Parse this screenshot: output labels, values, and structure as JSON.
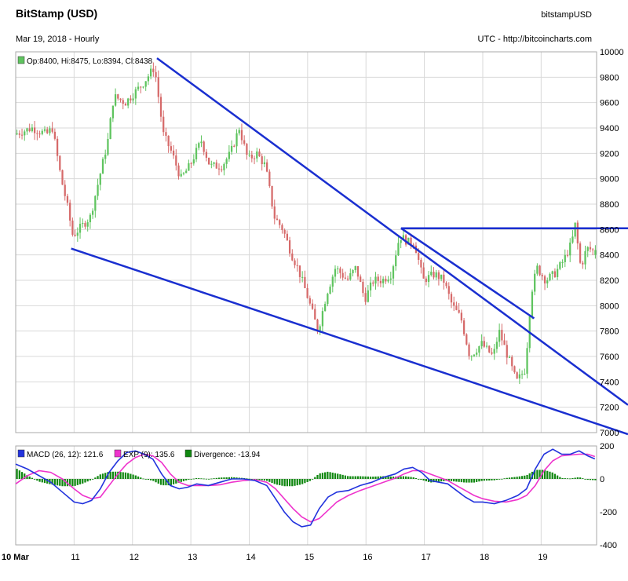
{
  "header": {
    "title": "BitStamp (USD)",
    "subtitle": "Mar 19, 2018 - Hourly",
    "symbol": "bitstampUSD",
    "source": "UTC - http://bitcoincharts.com",
    "ohlc": "Op:8400, Hi:8475, Lo:8394, Cl:8438"
  },
  "colors": {
    "up": "#5fc45f",
    "down": "#d66a6a",
    "trend": "#1a2fd0",
    "macd": "#2233dd",
    "signal": "#ee33cc",
    "divergence": "#118811",
    "grid": "#d9d9d9"
  },
  "chart_data": [
    {
      "type": "candlestick",
      "title": "BitStamp (USD)",
      "x_tick_labels": [
        "10 Mar",
        "11",
        "12",
        "13",
        "14",
        "15",
        "16",
        "17",
        "18",
        "19"
      ],
      "xlim": [
        10.0,
        19.95
      ],
      "ylim": [
        7000,
        10000
      ],
      "y_ticks": [
        7000,
        7200,
        7400,
        7600,
        7800,
        8000,
        8200,
        8400,
        8600,
        8800,
        9000,
        9200,
        9400,
        9600,
        9800,
        10000
      ],
      "grid": true,
      "anchor_closes": [
        [
          10.0,
          9350
        ],
        [
          10.3,
          9400
        ],
        [
          10.55,
          9350
        ],
        [
          10.65,
          9400
        ],
        [
          10.8,
          9000
        ],
        [
          10.9,
          8800
        ],
        [
          11.0,
          8550
        ],
        [
          11.3,
          8700
        ],
        [
          11.45,
          9000
        ],
        [
          11.6,
          9300
        ],
        [
          11.7,
          9650
        ],
        [
          11.9,
          9600
        ],
        [
          12.2,
          9750
        ],
        [
          12.4,
          9880
        ],
        [
          12.55,
          9350
        ],
        [
          12.7,
          9200
        ],
        [
          12.85,
          9000
        ],
        [
          13.0,
          9100
        ],
        [
          13.2,
          9300
        ],
        [
          13.35,
          9100
        ],
        [
          13.55,
          9100
        ],
        [
          13.7,
          9200
        ],
        [
          13.85,
          9400
        ],
        [
          14.0,
          9150
        ],
        [
          14.15,
          9200
        ],
        [
          14.3,
          9100
        ],
        [
          14.45,
          8700
        ],
        [
          14.6,
          8600
        ],
        [
          14.75,
          8400
        ],
        [
          14.85,
          8300
        ],
        [
          15.0,
          8100
        ],
        [
          15.2,
          7800
        ],
        [
          15.35,
          8100
        ],
        [
          15.5,
          8300
        ],
        [
          15.7,
          8200
        ],
        [
          15.85,
          8300
        ],
        [
          16.0,
          8050
        ],
        [
          16.15,
          8200
        ],
        [
          16.3,
          8200
        ],
        [
          16.45,
          8250
        ],
        [
          16.6,
          8550
        ],
        [
          16.75,
          8500
        ],
        [
          16.85,
          8500
        ],
        [
          17.0,
          8200
        ],
        [
          17.2,
          8250
        ],
        [
          17.35,
          8200
        ],
        [
          17.5,
          8000
        ],
        [
          17.65,
          7900
        ],
        [
          17.8,
          7600
        ],
        [
          18.0,
          7700
        ],
        [
          18.2,
          7600
        ],
        [
          18.3,
          7800
        ],
        [
          18.45,
          7600
        ],
        [
          18.6,
          7400
        ],
        [
          18.75,
          7500
        ],
        [
          18.85,
          8100
        ],
        [
          18.95,
          8300
        ],
        [
          19.1,
          8200
        ],
        [
          19.25,
          8250
        ],
        [
          19.4,
          8350
        ],
        [
          19.55,
          8500
        ],
        [
          19.6,
          8650
        ],
        [
          19.7,
          8300
        ],
        [
          19.8,
          8450
        ],
        [
          19.92,
          8438
        ]
      ],
      "last_candle": {
        "open": 8400,
        "high": 8475,
        "low": 8394,
        "close": 8438
      },
      "trendlines": [
        {
          "from": [
            12.42,
            9950
          ],
          "to": [
            19.95,
            7400
          ]
        },
        {
          "from": [
            10.95,
            8450
          ],
          "to": [
            19.95,
            7070
          ]
        },
        {
          "from": [
            16.6,
            8610
          ],
          "to": [
            19.95,
            8610
          ]
        },
        {
          "from": [
            18.88,
            7900
          ],
          "to": [
            16.6,
            8610
          ]
        }
      ]
    },
    {
      "type": "line",
      "title": "MACD",
      "legend": [
        {
          "label": "MACD (26, 12): 121.6",
          "key": "macd"
        },
        {
          "label": "EXP (9): 135.6",
          "key": "signal"
        },
        {
          "label": "Divergence: -13.94",
          "key": "divergence"
        }
      ],
      "xlim": [
        10.0,
        19.95
      ],
      "ylim": [
        -400,
        200
      ],
      "y_ticks": [
        -400,
        -200,
        0,
        200
      ],
      "series": [
        {
          "name": "MACD (26, 12)",
          "key": "macd",
          "x": [
            10.0,
            10.2,
            10.4,
            10.6,
            10.8,
            11.0,
            11.15,
            11.3,
            11.45,
            11.6,
            11.75,
            11.9,
            12.05,
            12.2,
            12.35,
            12.5,
            12.65,
            12.8,
            12.95,
            13.1,
            13.3,
            13.5,
            13.7,
            13.9,
            14.1,
            14.3,
            14.45,
            14.6,
            14.75,
            14.9,
            15.05,
            15.2,
            15.35,
            15.5,
            15.7,
            15.9,
            16.1,
            16.3,
            16.5,
            16.65,
            16.8,
            16.95,
            17.1,
            17.25,
            17.4,
            17.55,
            17.7,
            17.85,
            18.0,
            18.2,
            18.4,
            18.6,
            18.75,
            18.9,
            19.05,
            19.2,
            19.35,
            19.5,
            19.65,
            19.8,
            19.92
          ],
          "y": [
            90,
            60,
            20,
            -20,
            -80,
            -140,
            -150,
            -130,
            -60,
            40,
            110,
            160,
            170,
            150,
            120,
            30,
            -40,
            -60,
            -50,
            -30,
            -40,
            -20,
            0,
            0,
            -10,
            -40,
            -120,
            -200,
            -260,
            -290,
            -280,
            -180,
            -110,
            -80,
            -70,
            -40,
            -20,
            10,
            30,
            60,
            70,
            40,
            -10,
            -20,
            -30,
            -70,
            -110,
            -140,
            -140,
            -150,
            -130,
            -100,
            -60,
            60,
            150,
            180,
            150,
            150,
            170,
            140,
            121.6
          ]
        },
        {
          "name": "EXP (9)",
          "key": "signal",
          "x": [
            10.0,
            10.2,
            10.4,
            10.6,
            10.8,
            11.0,
            11.15,
            11.3,
            11.45,
            11.6,
            11.75,
            11.9,
            12.05,
            12.2,
            12.35,
            12.5,
            12.65,
            12.8,
            12.95,
            13.1,
            13.3,
            13.5,
            13.7,
            13.9,
            14.1,
            14.3,
            14.45,
            14.6,
            14.75,
            14.9,
            15.05,
            15.2,
            15.35,
            15.5,
            15.7,
            15.9,
            16.1,
            16.3,
            16.5,
            16.65,
            16.8,
            16.95,
            17.1,
            17.25,
            17.4,
            17.55,
            17.7,
            17.85,
            18.0,
            18.2,
            18.4,
            18.6,
            18.75,
            18.9,
            19.05,
            19.2,
            19.35,
            19.5,
            19.65,
            19.8,
            19.92
          ],
          "y": [
            -30,
            20,
            50,
            40,
            0,
            -60,
            -100,
            -120,
            -110,
            -40,
            30,
            90,
            130,
            150,
            140,
            100,
            30,
            -20,
            -40,
            -40,
            -40,
            -35,
            -20,
            -10,
            -5,
            -20,
            -60,
            -120,
            -180,
            -230,
            -260,
            -240,
            -190,
            -140,
            -100,
            -70,
            -45,
            -20,
            5,
            30,
            50,
            50,
            30,
            10,
            -10,
            -40,
            -70,
            -100,
            -120,
            -135,
            -140,
            -125,
            -100,
            -40,
            50,
            110,
            140,
            145,
            150,
            150,
            135.6
          ]
        },
        {
          "name": "Divergence",
          "key": "divergence",
          "type": "bar"
        }
      ]
    }
  ]
}
